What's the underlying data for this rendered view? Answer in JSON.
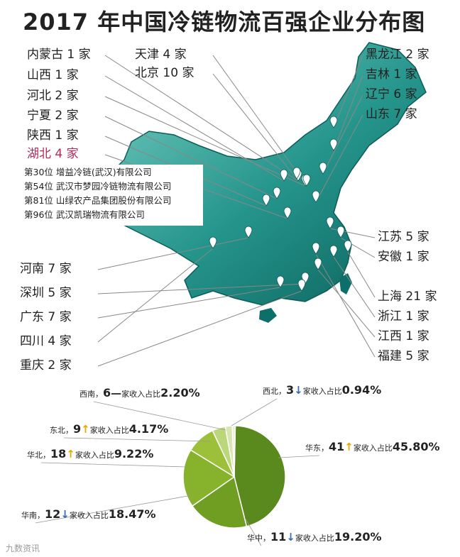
{
  "title": "2017 年中国冷链物流百强企业分布图",
  "colors": {
    "map_dark": "#0c6f6a",
    "map_light": "#5fc3b8",
    "leader": "#888888",
    "highlight": "#b5285a",
    "up_arrow": "#e6a800",
    "down_arrow": "#3a6bb5"
  },
  "regions_left": [
    {
      "name": "内蒙古",
      "count": "1 家"
    },
    {
      "name": "山西",
      "count": "1 家"
    },
    {
      "name": "河北",
      "count": "2 家"
    },
    {
      "name": "宁夏",
      "count": "2 家"
    },
    {
      "name": "陕西",
      "count": "1 家"
    },
    {
      "name": "湖北",
      "count": "4 家"
    },
    {
      "name": "河南",
      "count": "7 家"
    },
    {
      "name": "深圳",
      "count": "5 家"
    },
    {
      "name": "广东",
      "count": "7 家"
    },
    {
      "name": "四川",
      "count": "4 家"
    },
    {
      "name": "重庆",
      "count": "2 家"
    }
  ],
  "regions_top": [
    {
      "name": "天津",
      "count": "4 家"
    },
    {
      "name": "北京",
      "count": "10 家"
    }
  ],
  "regions_right": [
    {
      "name": "黑龙江",
      "count": "2 家"
    },
    {
      "name": "吉林",
      "count": "1 家"
    },
    {
      "name": "辽宁",
      "count": "6 家"
    },
    {
      "name": "山东",
      "count": "7 家"
    },
    {
      "name": "江苏",
      "count": "5 家"
    },
    {
      "name": "安徽",
      "count": "1 家"
    },
    {
      "name": "上海",
      "count": "21 家"
    },
    {
      "name": "浙江",
      "count": "1 家"
    },
    {
      "name": "江西",
      "count": "1 家"
    },
    {
      "name": "福建",
      "count": "5 家"
    }
  ],
  "hubei_companies": [
    {
      "rank": "第30位",
      "company": "增益冷链(武汉)有限公司"
    },
    {
      "rank": "第54位",
      "company": "武汉市梦园冷链物流有限公司"
    },
    {
      "rank": "第81位",
      "company": "山绿农产品集团股份有限公司"
    },
    {
      "rank": "第96位",
      "company": "武汉凯瑞物流有限公司"
    }
  ],
  "watermark": "九数资讯",
  "chart_data": {
    "type": "pie",
    "title": "",
    "unit_label": "家收入占比",
    "slices": [
      {
        "region": "华东",
        "count": 41,
        "trend": "up",
        "share_pct": 45.8,
        "share_text": "45.80%",
        "color": "#5a8a1e"
      },
      {
        "region": "华中",
        "count": 11,
        "trend": "down",
        "share_pct": 19.2,
        "share_text": "19.20%",
        "color": "#6f9e22"
      },
      {
        "region": "华南",
        "count": 12,
        "trend": "down",
        "share_pct": 18.47,
        "share_text": "18.47%",
        "color": "#86b22c"
      },
      {
        "region": "华北",
        "count": 18,
        "trend": "up",
        "share_pct": 9.22,
        "share_text": "9.22%",
        "color": "#9cc03a"
      },
      {
        "region": "东北",
        "count": 9,
        "trend": "up",
        "share_pct": 4.17,
        "share_text": "4.17%",
        "color": "#bcd77a"
      },
      {
        "region": "西南",
        "count": 6,
        "trend": "none",
        "share_pct": 2.2,
        "share_text": "2.20%",
        "color": "#d7e6b0"
      },
      {
        "region": "西北",
        "count": 3,
        "trend": "down",
        "share_pct": 0.94,
        "share_text": "0.94%",
        "color": "#e8f0d2"
      }
    ]
  }
}
